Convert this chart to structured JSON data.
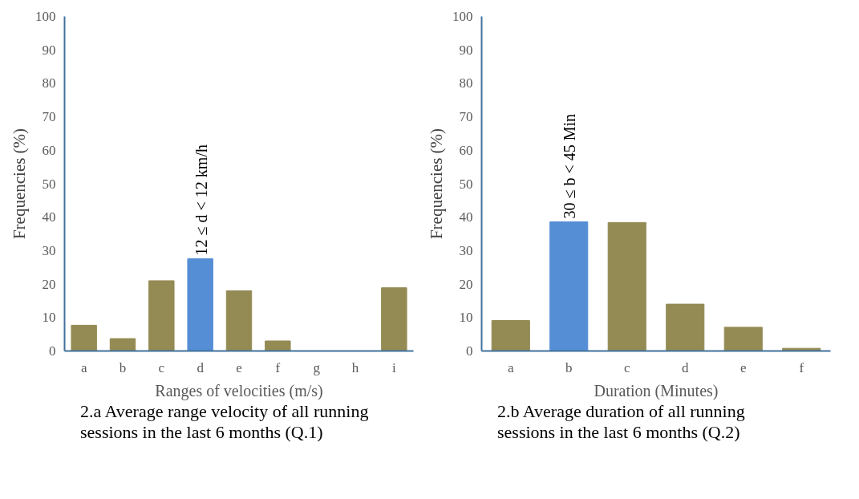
{
  "chart_data": [
    {
      "type": "bar",
      "categories": [
        "a",
        "b",
        "c",
        "d",
        "e",
        "f",
        "g",
        "h",
        "i"
      ],
      "values": [
        7.7,
        3.7,
        21,
        27.6,
        18,
        3,
        0,
        0,
        18.9
      ],
      "colors": [
        "#948a54",
        "#948a54",
        "#948a54",
        "#558ed5",
        "#948a54",
        "#948a54",
        "#948a54",
        "#948a54",
        "#948a54"
      ],
      "ylim": [
        0,
        100
      ],
      "yticks": [
        0,
        10,
        20,
        30,
        40,
        50,
        60,
        70,
        80,
        90,
        100
      ],
      "grid": false,
      "xlabel": "Ranges of velocities (m/s)",
      "ylabel": "Frequencies (%)",
      "annotations": [
        {
          "text": "12 ≤ d < 12 km/h",
          "x": "d",
          "y": 27.6
        },
        "2.a Average range velocity of all running sessions in the last 6 months (Q.1)"
      ]
    },
    {
      "type": "bar",
      "categories": [
        "a",
        "b",
        "c",
        "d",
        "e",
        "f"
      ],
      "values": [
        9.1,
        38.6,
        38.4,
        14,
        7.1,
        0.8
      ],
      "colors": [
        "#948a54",
        "#558ed5",
        "#948a54",
        "#948a54",
        "#948a54",
        "#948a54"
      ],
      "ylim": [
        0,
        100
      ],
      "yticks": [
        0,
        10,
        20,
        30,
        40,
        50,
        60,
        70,
        80,
        90,
        100
      ],
      "grid": false,
      "xlabel": "Duration (Minutes)",
      "ylabel": "Frequencies (%)",
      "annotations": [
        {
          "text": "30 ≤ b < 45 Min",
          "x": "b",
          "y": 38.6
        },
        "2.b Average duration of all running sessions in the last 6 months (Q.2)"
      ]
    }
  ]
}
